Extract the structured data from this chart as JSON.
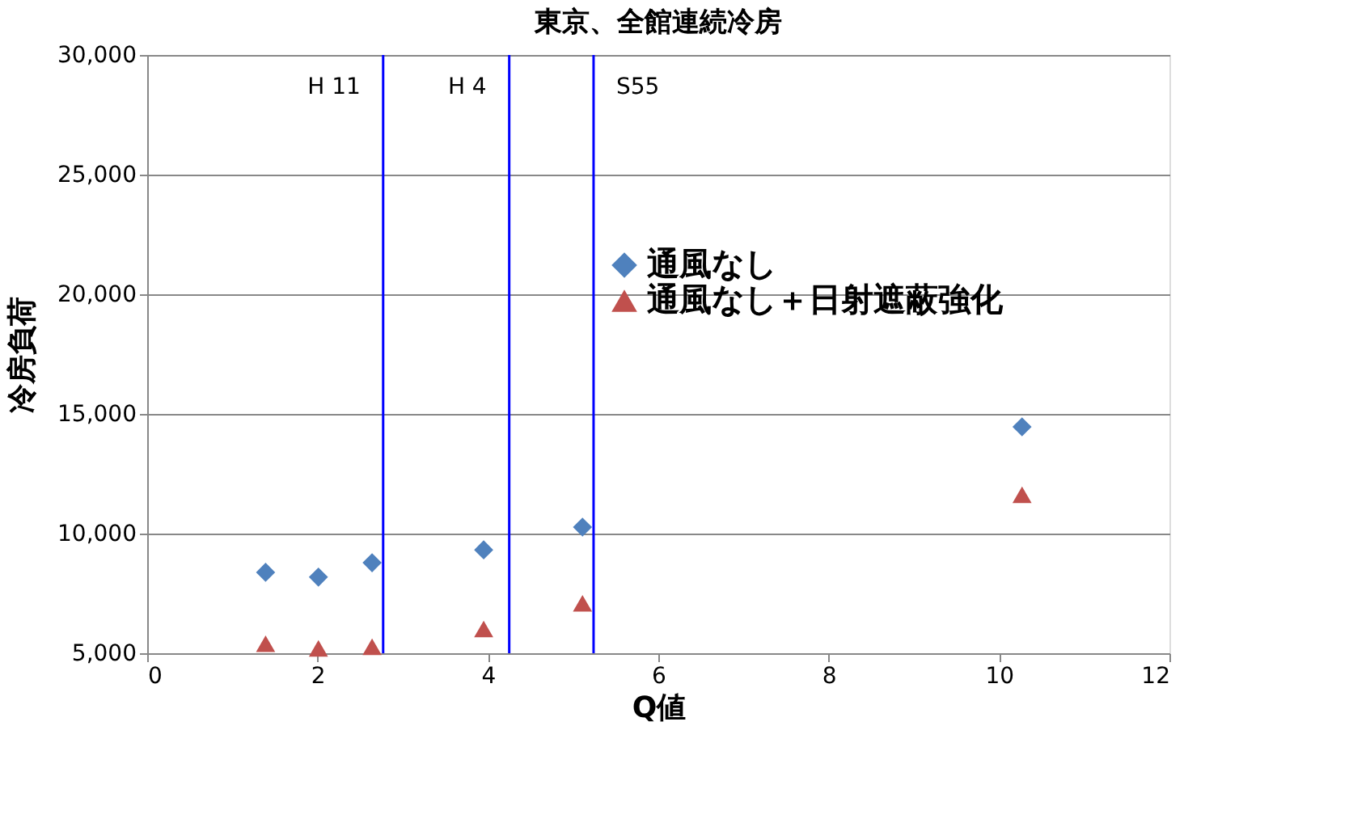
{
  "chart_data": {
    "type": "scatter",
    "title": "東京、全館連続冷房",
    "xlabel": "Q値",
    "ylabel": "冷房負荷",
    "xlim": [
      0,
      12
    ],
    "xticks": [
      0,
      2,
      4,
      6,
      8,
      10,
      12
    ],
    "ylim": [
      5000,
      30000
    ],
    "yticks": [
      {
        "value": 5000,
        "label": "5,000"
      },
      {
        "value": 10000,
        "label": "10,000"
      },
      {
        "value": 15000,
        "label": "15,000"
      },
      {
        "value": 20000,
        "label": "20,000"
      },
      {
        "value": 25000,
        "label": "25,000"
      },
      {
        "value": 30000,
        "label": "30,000"
      }
    ],
    "grid": "y",
    "legend": "top right",
    "x": [
      1.39,
      2.01,
      2.64,
      3.95,
      5.11,
      10.27
    ],
    "series": [
      {
        "name": "通風なし",
        "color": "#4f81bd",
        "marker": "diamond",
        "values": [
          8380,
          8180,
          8780,
          9320,
          10270,
          14460
        ]
      },
      {
        "name": "通風なし＋日射遮蔽強化",
        "color": "#c0504d",
        "marker": "triangle",
        "values": [
          5400,
          5200,
          5270,
          6010,
          7090,
          11620
        ]
      }
    ],
    "ref_lines": [
      {
        "axis": "x",
        "value": 2.77,
        "label": "H 11",
        "color": "#0000ff"
      },
      {
        "axis": "x",
        "value": 4.25,
        "label": "H 4",
        "color": "#0000ff"
      },
      {
        "axis": "x",
        "value": 5.24,
        "label": "S55",
        "color": "#0000ff"
      }
    ]
  }
}
